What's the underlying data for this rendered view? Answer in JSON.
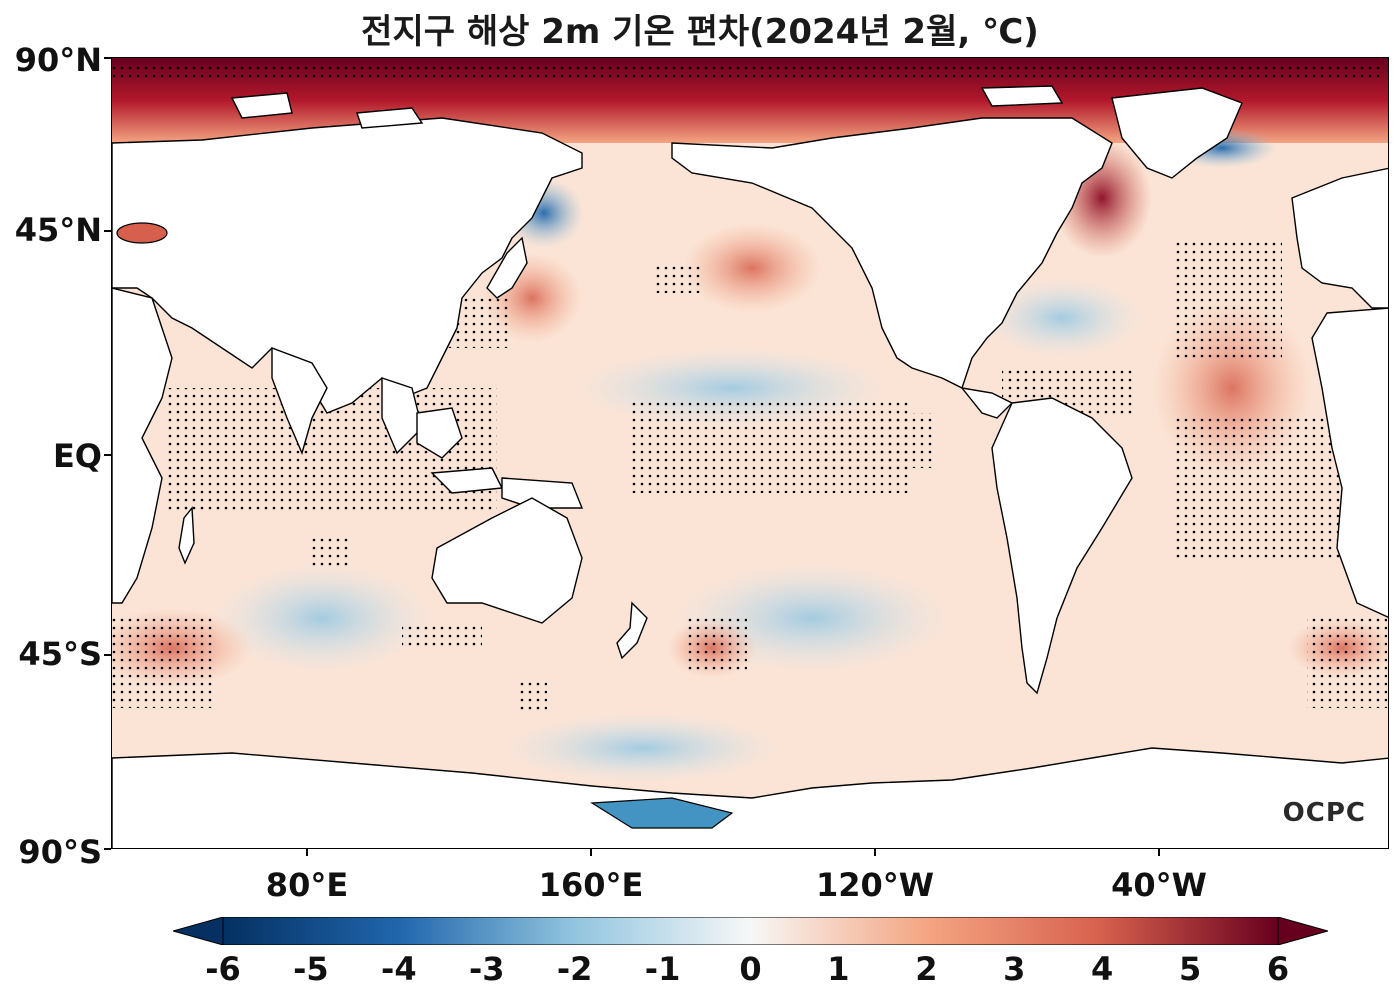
{
  "title": "전지구 해상 2m 기온 편차(2024년 2월, ℃)",
  "latitude_labels": [
    "90°N",
    "45°N",
    "EQ",
    "45°S",
    "90°S"
  ],
  "longitude_labels": [
    "80°E",
    "160°E",
    "120°W",
    "40°W"
  ],
  "colorbar": {
    "ticks": [
      "-6",
      "-5",
      "-4",
      "-3",
      "-2",
      "-1",
      "0",
      "1",
      "2",
      "3",
      "4",
      "5",
      "6"
    ],
    "min": -6,
    "max": 6,
    "extend": "both",
    "colormap": "RdBu_r",
    "colors": {
      "darkest_blue": "#053061",
      "blue": "#2166ac",
      "light_blue": "#92c5de",
      "neutral": "#f7f7f7",
      "light_red": "#f4a582",
      "red": "#d6604d",
      "darkest_red": "#67001f"
    }
  },
  "map": {
    "projection": "Plate Carree, centered on Pacific (~180°)",
    "land_color": "#ffffff",
    "coastline_color": "#000000",
    "significance_marker": "dots"
  },
  "logo": "OCPC"
}
